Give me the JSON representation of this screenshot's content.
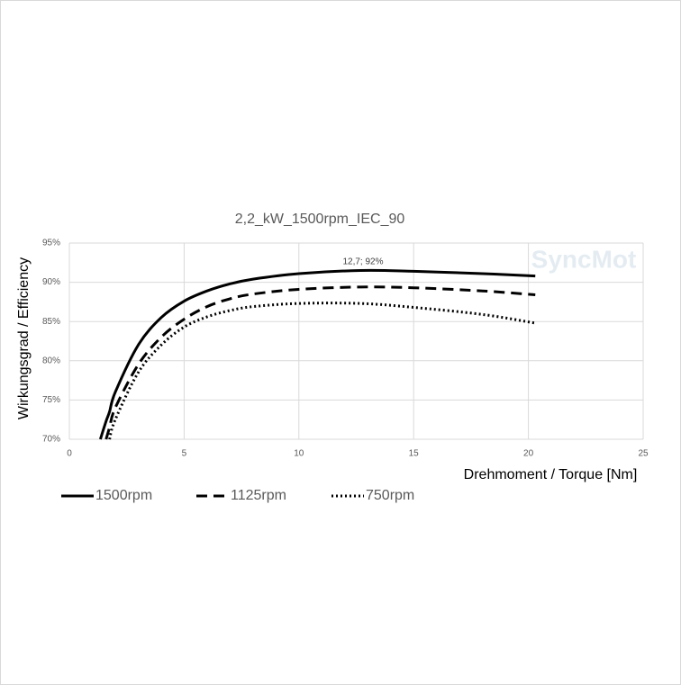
{
  "chart_data": {
    "type": "line",
    "title": "2,2_kW_1500rpm_IEC_90",
    "xlabel": "Drehmoment / Torque [Nm]",
    "ylabel": "Wirkungsgrad / Efficiency",
    "annotation": "12,7; 92%",
    "watermark": "SyncMot",
    "x": [
      1.35,
      1.6,
      1.75,
      2,
      3,
      4,
      5,
      6,
      7,
      8,
      10,
      12.7,
      15,
      18,
      20.3
    ],
    "series": [
      {
        "name": "1500rpm",
        "color": "#000000",
        "style": "solid",
        "values": [
          70,
          72.3,
          73.5,
          76,
          82,
          85.5,
          87.6,
          88.9,
          89.8,
          90.4,
          91.1,
          91.5,
          91.4,
          91.1,
          90.8
        ]
      },
      {
        "name": "1125rpm",
        "color": "#000000",
        "style": "dashed",
        "values": [
          null,
          70,
          71.5,
          74,
          79.5,
          83,
          85.3,
          86.9,
          87.9,
          88.5,
          89.1,
          89.4,
          89.3,
          88.9,
          88.4
        ]
      },
      {
        "name": "750rpm",
        "color": "#000000",
        "style": "dotted",
        "values": [
          null,
          null,
          70,
          72.5,
          78.5,
          82,
          84.3,
          85.6,
          86.4,
          86.9,
          87.3,
          87.3,
          86.8,
          85.9,
          84.8
        ]
      }
    ],
    "xlim": [
      0,
      25
    ],
    "xticks": [
      0,
      5,
      10,
      15,
      20,
      25
    ],
    "ylim": [
      70,
      95
    ],
    "yticks": [
      {
        "value": 70,
        "label": "70%"
      },
      {
        "value": 75,
        "label": "75%"
      },
      {
        "value": 80,
        "label": "80%"
      },
      {
        "value": 85,
        "label": "85%"
      },
      {
        "value": 90,
        "label": "90%"
      },
      {
        "value": 95,
        "label": "95%"
      }
    ],
    "grid": true,
    "legend": "bottom"
  }
}
